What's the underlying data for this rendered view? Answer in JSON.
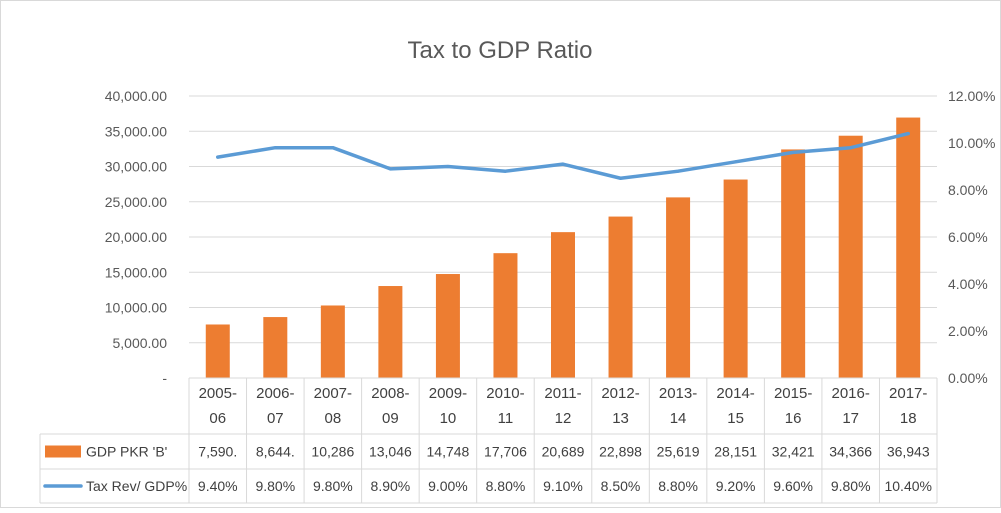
{
  "chart_data": {
    "type": "bar",
    "title": "Tax to GDP Ratio",
    "categories": [
      [
        "2005-",
        "06"
      ],
      [
        "2006-",
        "07"
      ],
      [
        "2007-",
        "08"
      ],
      [
        "2008-",
        "09"
      ],
      [
        "2009-",
        "10"
      ],
      [
        "2010-",
        "11"
      ],
      [
        "2011-",
        "12"
      ],
      [
        "2012-",
        "13"
      ],
      [
        "2013-",
        "14"
      ],
      [
        "2014-",
        "15"
      ],
      [
        "2015-",
        "16"
      ],
      [
        "2016-",
        "17"
      ],
      [
        "2017-",
        "18"
      ]
    ],
    "series": [
      {
        "name": "GDP PKR 'B'",
        "type": "bar",
        "axis": "left",
        "color": "#ED7D31",
        "values": [
          7590,
          8644,
          10286,
          13046,
          14748,
          17706,
          20689,
          22898,
          25619,
          28151,
          32421,
          34366,
          36943
        ],
        "table_labels": [
          "7,590.",
          "8,644.",
          "10,286",
          "13,046",
          "14,748",
          "17,706",
          "20,689",
          "22,898",
          "25,619",
          "28,151",
          "32,421",
          "34,366",
          "36,943"
        ]
      },
      {
        "name": "Tax Rev/ GDP%",
        "type": "line",
        "axis": "right",
        "color": "#5B9BD5",
        "values": [
          9.4,
          9.8,
          9.8,
          8.9,
          9.0,
          8.8,
          9.1,
          8.5,
          8.8,
          9.2,
          9.6,
          9.8,
          10.4
        ],
        "table_labels": [
          "9.40%",
          "9.80%",
          "9.80%",
          "8.90%",
          "9.00%",
          "8.80%",
          "9.10%",
          "8.50%",
          "8.80%",
          "9.20%",
          "9.60%",
          "9.80%",
          "10.40%"
        ]
      }
    ],
    "y_left": {
      "ylim": [
        0,
        40000
      ],
      "ticks": [
        0,
        5000,
        10000,
        15000,
        20000,
        25000,
        30000,
        35000,
        40000
      ],
      "tick_labels": [
        "-",
        "5,000.00",
        "10,000.00",
        "15,000.00",
        "20,000.00",
        "25,000.00",
        "30,000.00",
        "35,000.00",
        "40,000.00"
      ]
    },
    "y_right": {
      "ylim": [
        0,
        12
      ],
      "ticks": [
        0,
        2,
        4,
        6,
        8,
        10,
        12
      ],
      "tick_labels": [
        "0.00%",
        "2.00%",
        "4.00%",
        "6.00%",
        "8.00%",
        "10.00%",
        "12.00%"
      ]
    },
    "grid": true,
    "legend_placement": "data-table",
    "data_table": true
  }
}
